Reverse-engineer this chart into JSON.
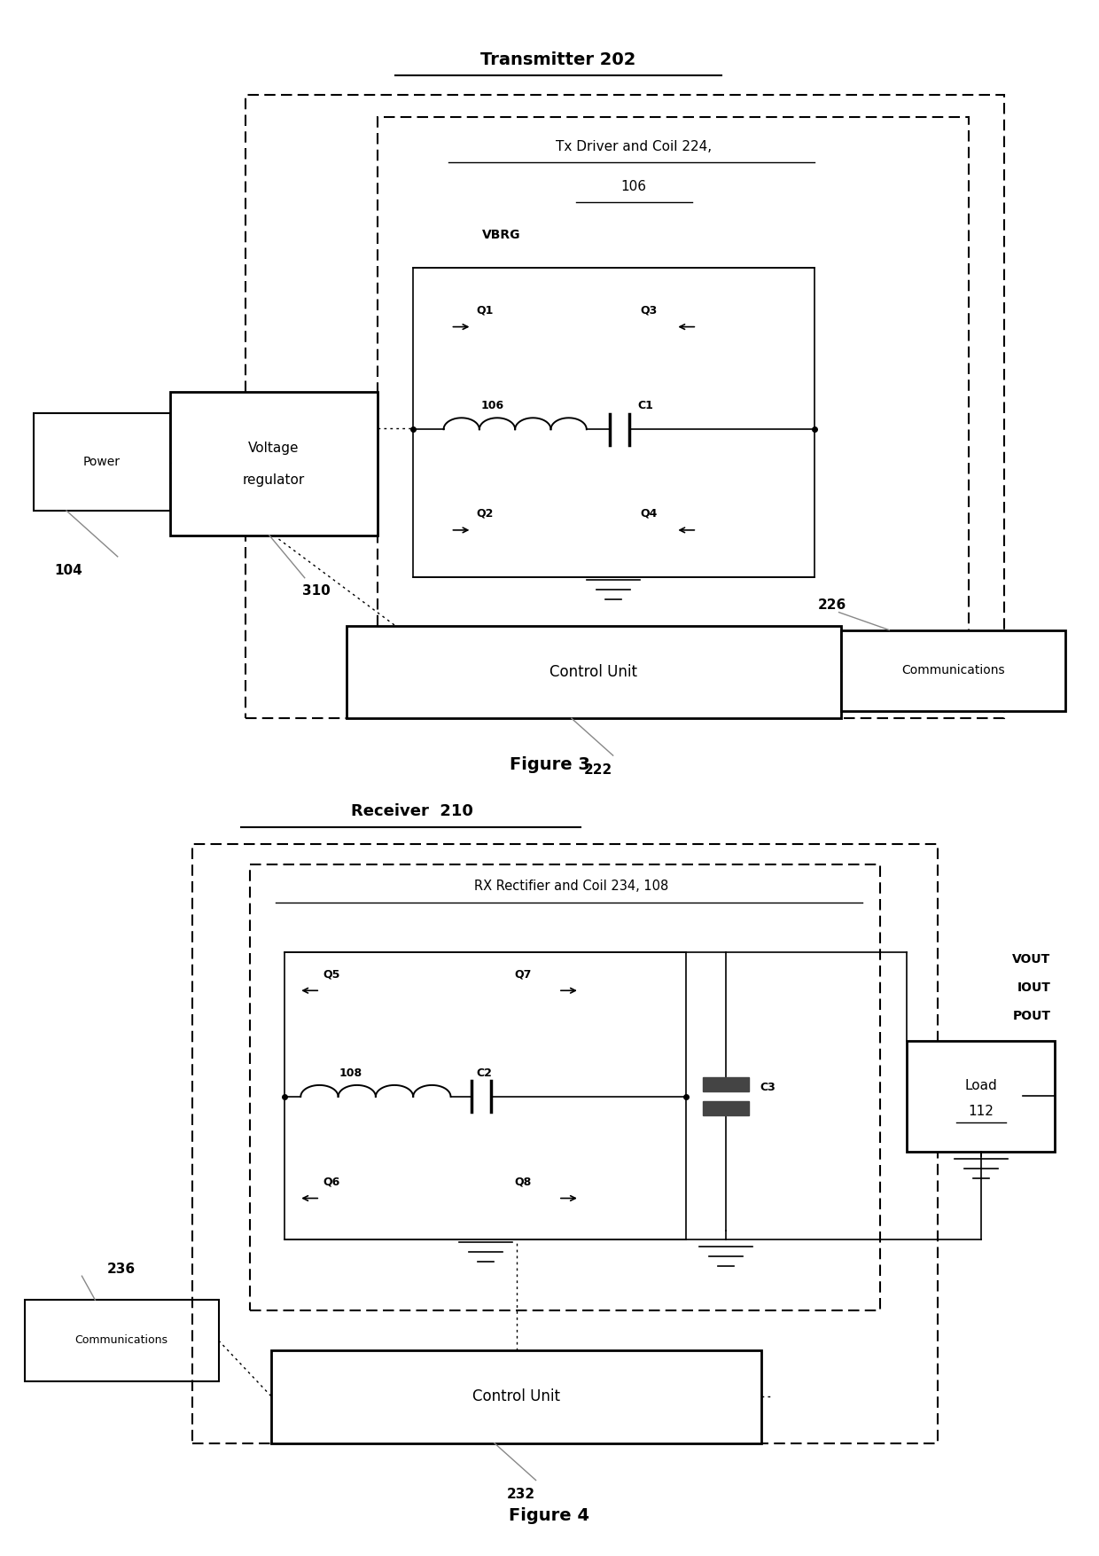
{
  "fig3": {
    "title": "Transmitter 202",
    "tx_box_label1": "Tx Driver and Coil 224,",
    "tx_box_label2": "106",
    "vbrg_label": "VBRG",
    "q_labels_tx": [
      "Q1",
      "Q2",
      "Q3",
      "Q4"
    ],
    "inductor_label_tx": "106",
    "capacitor_label_tx": "C1",
    "control_unit_label": "Control Unit",
    "control_unit_num": "222",
    "power_label": "Power",
    "power_num": "104",
    "vreg_label1": "Voltage",
    "vreg_label2": "regulator",
    "vreg_num": "310",
    "comm_label_tx": "Communications",
    "comm_num_tx": "226"
  },
  "fig4": {
    "title": "Receiver  210",
    "rx_box_label": "RX Rectifier and Coil 234, 108",
    "q_labels_rx": [
      "Q5",
      "Q6",
      "Q7",
      "Q8"
    ],
    "inductor_label_rx": "108",
    "capacitor_label_rx": "C2",
    "cap3_label": "C3",
    "control_unit_label": "Control Unit",
    "control_unit_num": "232",
    "comm_label_rx": "Communications",
    "comm_num_rx": "236",
    "load_label": "Load",
    "load_num": "112",
    "vout_labels": [
      "VOUT",
      "IOUT",
      "POUT"
    ]
  },
  "figure3_caption": "Figure 3",
  "figure4_caption": "Figure 4",
  "bg_color": "#ffffff",
  "line_color": "#000000",
  "gray_color": "#888888",
  "dark_color": "#444444"
}
